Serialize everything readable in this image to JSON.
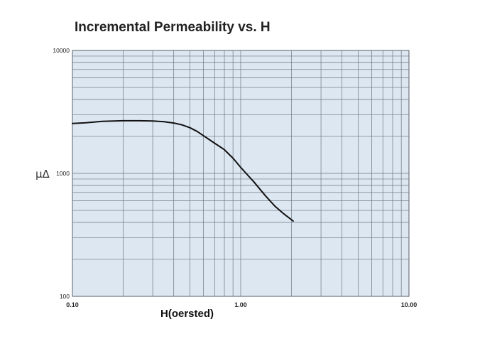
{
  "chart_data": {
    "type": "line",
    "title": "Incremental Permeability vs. H",
    "xlabel": "H(oersted)",
    "ylabel": "μΔ",
    "x_scale": "log",
    "y_scale": "log",
    "xlim": [
      0.1,
      10
    ],
    "ylim": [
      100,
      10000
    ],
    "x_ticks": [
      "0.10",
      "1.00",
      "10.00"
    ],
    "y_ticks": [
      "10000",
      "1000",
      "100"
    ],
    "grid": true,
    "colors": {
      "plot_bg": "#dde7f1",
      "grid": "#6a7580",
      "line": "#111111"
    },
    "series": [
      {
        "x": [
          0.1,
          0.12,
          0.15,
          0.2,
          0.25,
          0.3,
          0.35,
          0.4,
          0.45,
          0.5,
          0.55,
          0.6,
          0.7,
          0.8,
          0.9,
          1.0,
          1.2,
          1.4,
          1.6,
          1.8,
          2.05
        ],
        "y": [
          2550,
          2580,
          2650,
          2680,
          2680,
          2670,
          2630,
          2570,
          2480,
          2350,
          2200,
          2030,
          1760,
          1560,
          1330,
          1120,
          850,
          660,
          540,
          470,
          410
        ]
      }
    ]
  }
}
